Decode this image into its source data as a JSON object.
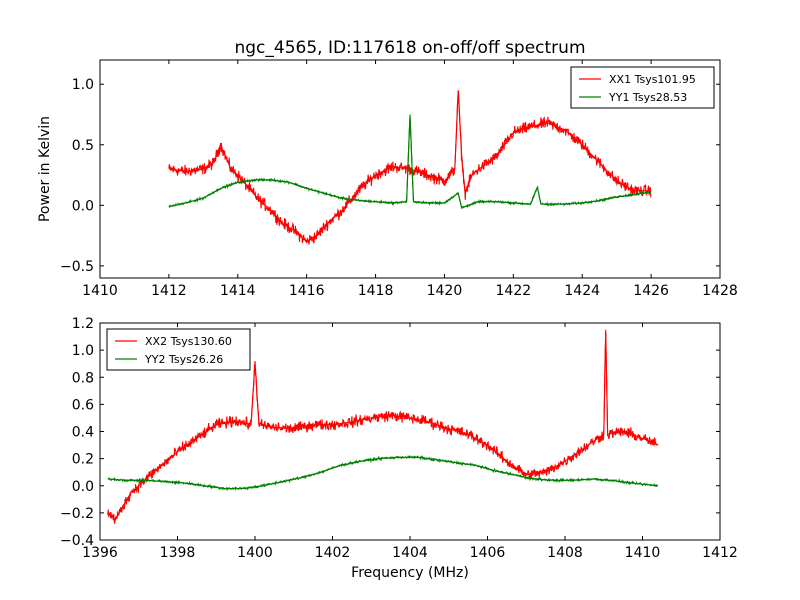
{
  "chart_data": [
    {
      "type": "line",
      "title": "ngc_4565, ID:117618 on-off/off spectrum",
      "xlabel": "",
      "ylabel": "Power in Kelvin",
      "xlim": [
        1410,
        1428
      ],
      "ylim": [
        -0.6,
        1.2
      ],
      "xticks": [
        1410,
        1412,
        1414,
        1416,
        1418,
        1420,
        1422,
        1424,
        1426,
        1428
      ],
      "yticks": [
        -0.5,
        0.0,
        0.5,
        1.0
      ],
      "legend": "top-right",
      "grid": false,
      "series": [
        {
          "name": "XX1 Tsys101.95",
          "color": "#ff0000",
          "x": [
            1412.0,
            1412.5,
            1413.0,
            1413.3,
            1413.5,
            1413.8,
            1414.0,
            1414.3,
            1414.6,
            1415.0,
            1415.3,
            1415.6,
            1416.0,
            1416.3,
            1416.6,
            1417.0,
            1417.3,
            1417.6,
            1418.0,
            1418.5,
            1419.0,
            1419.5,
            1420.0,
            1420.3,
            1420.4,
            1420.5,
            1420.6,
            1420.8,
            1421.0,
            1421.5,
            1422.0,
            1422.5,
            1423.0,
            1423.5,
            1424.0,
            1424.5,
            1425.0,
            1425.5,
            1426.0
          ],
          "y": [
            0.3,
            0.28,
            0.3,
            0.35,
            0.5,
            0.3,
            0.25,
            0.15,
            0.05,
            -0.05,
            -0.15,
            -0.2,
            -0.3,
            -0.25,
            -0.15,
            -0.05,
            0.05,
            0.15,
            0.25,
            0.32,
            0.3,
            0.25,
            0.2,
            0.3,
            0.95,
            0.4,
            0.1,
            0.25,
            0.3,
            0.4,
            0.6,
            0.65,
            0.68,
            0.62,
            0.5,
            0.35,
            0.2,
            0.12,
            0.12
          ]
        },
        {
          "name": "YY1 Tsys28.53",
          "color": "#008000",
          "x": [
            1412.0,
            1412.5,
            1413.0,
            1413.5,
            1414.0,
            1414.5,
            1415.0,
            1415.5,
            1416.0,
            1416.5,
            1417.0,
            1417.5,
            1418.0,
            1418.5,
            1418.9,
            1419.0,
            1419.1,
            1419.5,
            1420.0,
            1420.4,
            1420.5,
            1421.0,
            1421.5,
            1422.0,
            1422.5,
            1422.7,
            1422.8,
            1423.0,
            1423.5,
            1424.0,
            1424.5,
            1425.0,
            1425.5,
            1426.0
          ],
          "y": [
            -0.01,
            0.02,
            0.06,
            0.14,
            0.19,
            0.21,
            0.21,
            0.19,
            0.14,
            0.1,
            0.06,
            0.04,
            0.03,
            0.02,
            0.03,
            0.75,
            0.03,
            0.02,
            0.02,
            0.1,
            -0.02,
            0.03,
            0.03,
            0.02,
            0.01,
            0.15,
            0.01,
            0.01,
            0.01,
            0.02,
            0.04,
            0.07,
            0.09,
            0.11
          ]
        }
      ]
    },
    {
      "type": "line",
      "title": "",
      "xlabel": "Frequency (MHz)",
      "ylabel": "",
      "xlim": [
        1396,
        1412
      ],
      "ylim": [
        -0.4,
        1.2
      ],
      "xticks": [
        1396,
        1398,
        1400,
        1402,
        1404,
        1406,
        1408,
        1410,
        1412
      ],
      "yticks": [
        -0.4,
        -0.2,
        0.0,
        0.2,
        0.4,
        0.6,
        0.8,
        1.0,
        1.2
      ],
      "legend": "top-left",
      "grid": false,
      "series": [
        {
          "name": "XX2 Tsys130.60",
          "color": "#ff0000",
          "x": [
            1396.2,
            1396.4,
            1396.6,
            1396.8,
            1397.0,
            1397.3,
            1397.6,
            1398.0,
            1398.5,
            1399.0,
            1399.5,
            1399.9,
            1400.0,
            1400.1,
            1400.5,
            1401.0,
            1401.5,
            1402.0,
            1402.5,
            1403.0,
            1403.5,
            1404.0,
            1404.5,
            1405.0,
            1405.5,
            1406.0,
            1406.5,
            1407.0,
            1407.5,
            1408.0,
            1408.5,
            1409.0,
            1409.05,
            1409.1,
            1409.5,
            1410.0,
            1410.4
          ],
          "y": [
            -0.2,
            -0.25,
            -0.15,
            -0.05,
            0.0,
            0.08,
            0.15,
            0.25,
            0.35,
            0.45,
            0.48,
            0.45,
            0.92,
            0.45,
            0.43,
            0.42,
            0.45,
            0.45,
            0.47,
            0.5,
            0.52,
            0.5,
            0.47,
            0.42,
            0.38,
            0.3,
            0.18,
            0.08,
            0.1,
            0.18,
            0.28,
            0.38,
            1.15,
            0.38,
            0.4,
            0.35,
            0.3
          ]
        },
        {
          "name": "YY2 Tsys26.26",
          "color": "#008000",
          "x": [
            1396.2,
            1396.7,
            1397.2,
            1397.7,
            1398.2,
            1398.7,
            1399.2,
            1399.7,
            1400.2,
            1400.7,
            1401.2,
            1401.7,
            1402.2,
            1402.7,
            1403.2,
            1403.7,
            1404.2,
            1404.7,
            1405.2,
            1405.7,
            1406.2,
            1406.7,
            1407.2,
            1407.7,
            1408.2,
            1408.7,
            1409.2,
            1409.7,
            1410.4
          ],
          "y": [
            0.05,
            0.04,
            0.04,
            0.03,
            0.02,
            0.0,
            -0.02,
            -0.02,
            0.0,
            0.03,
            0.06,
            0.1,
            0.15,
            0.18,
            0.2,
            0.21,
            0.21,
            0.19,
            0.17,
            0.15,
            0.11,
            0.08,
            0.05,
            0.04,
            0.04,
            0.05,
            0.04,
            0.02,
            0.0
          ]
        }
      ]
    }
  ]
}
